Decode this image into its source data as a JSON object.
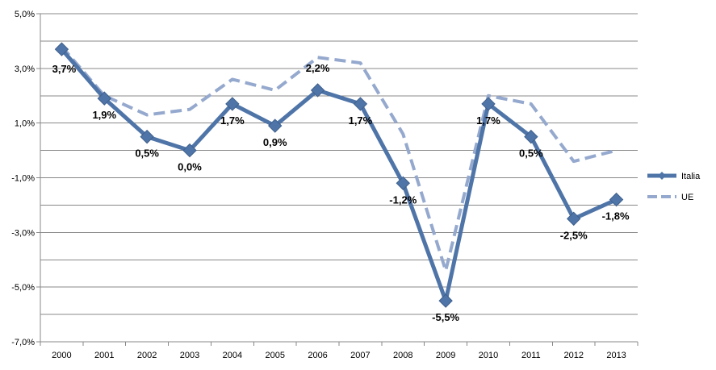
{
  "chart_data": {
    "type": "line",
    "categories": [
      "2000",
      "2001",
      "2002",
      "2003",
      "2004",
      "2005",
      "2006",
      "2007",
      "2008",
      "2009",
      "2010",
      "2011",
      "2012",
      "2013"
    ],
    "series": [
      {
        "name": "Italia",
        "values": [
          3.7,
          1.9,
          0.5,
          0.0,
          1.7,
          0.9,
          2.2,
          1.7,
          -1.2,
          -5.5,
          1.7,
          0.5,
          -2.5,
          -1.8
        ],
        "labels": [
          "3,7%",
          "1,9%",
          "0,5%",
          "0,0%",
          "1,7%",
          "0,9%",
          "2,2%",
          "1,7%",
          "-1,2%",
          "-5,5%",
          "1,7%",
          "0,5%",
          "-2,5%",
          "-1,8%"
        ],
        "color": "#4F75A8",
        "style": "solid-diamond-markers"
      },
      {
        "name": "UE",
        "values": [
          3.8,
          2.0,
          1.3,
          1.5,
          2.6,
          2.2,
          3.4,
          3.2,
          0.6,
          -4.4,
          2.0,
          1.7,
          -0.4,
          0.0
        ],
        "color": "#95A9CE",
        "style": "dashed"
      }
    ],
    "yticks": [
      "5,0%",
      "3,0%",
      "1,0%",
      "-1,0%",
      "-3,0%",
      "-5,0%",
      "-7,0%"
    ],
    "ytick_values": [
      5,
      3,
      1,
      -1,
      -3,
      -5,
      -7
    ],
    "ylim": [
      -7,
      5
    ],
    "grid": true,
    "legend_position": "right"
  }
}
